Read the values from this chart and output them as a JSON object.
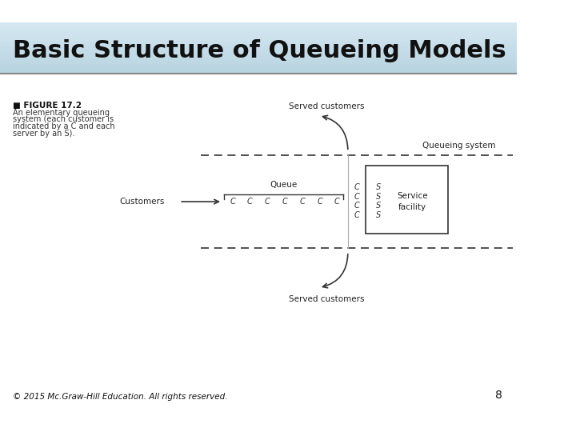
{
  "title": "Basic Structure of Queueing Models",
  "title_bg_top": "#b8d4e0",
  "title_bg_bottom": "#d8eaf2",
  "bg_color": "#ffffff",
  "footer_text": "© 2015 Mc.Graw-Hill Education. All rights reserved.",
  "page_number": "8",
  "figure_label": "FIGURE 17.2",
  "figure_desc1": "An elementary queueing",
  "figure_desc2": "system (each customer is",
  "figure_desc3": "indicated by a C and each",
  "figure_desc4": "server by an S).",
  "label_served_top": "Served customers",
  "label_served_bottom": "Served customers",
  "label_queueing_system": "Queueing system",
  "label_customers": "Customers",
  "label_queue": "Queue",
  "label_service_facility": "Service\nfacility",
  "queue_items": "C  C  C  C  C  C  C",
  "right_C_items": [
    "C",
    "C",
    "C",
    "C"
  ],
  "right_S_items": [
    "S",
    "S",
    "S",
    "S"
  ]
}
